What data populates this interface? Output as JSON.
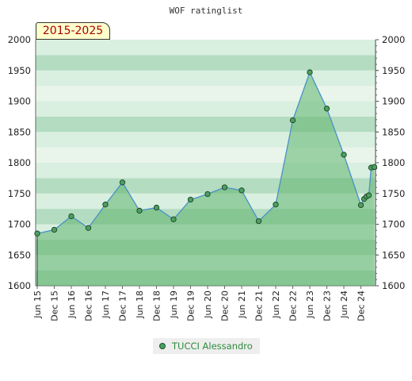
{
  "chart_data": {
    "type": "area",
    "title": "WOF ratinglist",
    "range_label": "2015-2025",
    "ylim": [
      1600,
      2000
    ],
    "yticks": [
      1600,
      1650,
      1700,
      1750,
      1800,
      1850,
      1900,
      1950,
      2000
    ],
    "xticks": [
      "Jun 15",
      "Dec 15",
      "Jun 16",
      "Dec 16",
      "Jun 17",
      "Dec 17",
      "Jun 18",
      "Dec 18",
      "Jun 19",
      "Dec 19",
      "Jun 20",
      "Dec 20",
      "Jun 21",
      "Dec 21",
      "Jun 22",
      "Dec 22",
      "Jun 23",
      "Dec 23",
      "Jun 24",
      "Dec 24"
    ],
    "legend_position": "bottom",
    "colors": {
      "fill": "#5fb46e",
      "line": "#4a90c8",
      "marker": "#4aa060",
      "band_dark": "#b3dcc0",
      "band_light": "#d9efe0"
    },
    "series": [
      {
        "name": "TUCCI Alessandro",
        "points": [
          {
            "x": "Jun 15",
            "y": 1685
          },
          {
            "x": "Dec 15",
            "y": 1691
          },
          {
            "x": "Jun 16",
            "y": 1713
          },
          {
            "x": "Dec 16",
            "y": 1694
          },
          {
            "x": "Jun 17",
            "y": 1732
          },
          {
            "x": "Dec 17",
            "y": 1768
          },
          {
            "x": "Jun 18",
            "y": 1722
          },
          {
            "x": "Dec 18",
            "y": 1727
          },
          {
            "x": "Jun 19",
            "y": 1708
          },
          {
            "x": "Dec 19",
            "y": 1740
          },
          {
            "x": "Jun 20",
            "y": 1749
          },
          {
            "x": "Dec 20",
            "y": 1760
          },
          {
            "x": "Jun 21",
            "y": 1755
          },
          {
            "x": "Dec 21",
            "y": 1705
          },
          {
            "x": "Jun 22",
            "y": 1732
          },
          {
            "x": "Dec 22",
            "y": 1869
          },
          {
            "x": "Jun 23",
            "y": 1947
          },
          {
            "x": "Dec 23",
            "y": 1888
          },
          {
            "x": "Jun 24",
            "y": 1813
          },
          {
            "x": "Dec 24",
            "y": 1731
          },
          {
            "x": "Dec 24",
            "y": 1741
          },
          {
            "x": "Dec 24",
            "y": 1745
          },
          {
            "x": "Dec 24",
            "y": 1747
          },
          {
            "x": "Dec 24",
            "y": 1792
          },
          {
            "x": "Dec 24",
            "y": 1793
          }
        ]
      }
    ]
  }
}
